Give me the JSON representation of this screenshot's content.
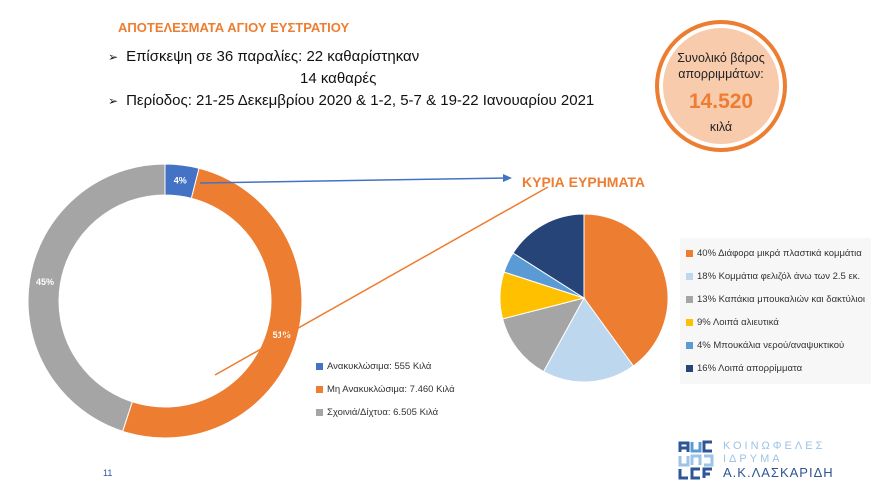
{
  "title": "ΑΠΟΤΕΛΕΣΜΑΤΑ ΑΓΙΟΥ ΕΥΣΤΡΑΤΙΟΥ",
  "bullets": {
    "visit": "Επίσκεψη σε 36 παραλίες:  22 καθαρίστηκαν",
    "visit2": "14 καθαρές",
    "period": "Περίοδος: 21-25 Δεκεμβρίου 2020 & 1-2, 5-7 & 19-22 Ιανουαρίου 2021",
    "bullet_icon": "arrow-bullet"
  },
  "total": {
    "label": "Συνολικό βάρος απορριμμάτων:",
    "value": "14.520",
    "unit": "κιλά"
  },
  "findings_title": "ΚΥΡΙΑ ΕΥΡΗΜΑΤΑ",
  "page_number": "11",
  "logo": {
    "letters": "AUC LCF",
    "line1": "ΚΟΙΝΩΦΕΛΕΣ",
    "line2": "ΙΔΡΥΜΑ",
    "line3": "Α.Κ.ΛΑΣΚΑΡΙΔΗ"
  },
  "chart_data": [
    {
      "type": "donut",
      "title": "",
      "categories": [
        "Ανακυκλώσιμα: 555 Κιλά",
        "Μη Ανακυκλώσιμα: 7.460 Κιλά",
        "Σχοινιά/Δίχτυα: 6.505 Κιλά"
      ],
      "values": [
        4,
        51,
        45
      ],
      "data_labels": [
        "4%",
        "51%",
        "45%"
      ],
      "colors": [
        "#4472c4",
        "#ed7d31",
        "#a5a5a5"
      ],
      "legend": "bottom-right"
    },
    {
      "type": "pie",
      "title": "",
      "categories": [
        "40% Διάφορα μικρά πλαστικά κομμάτια",
        "18% Κομμάτια φελιζόλ άνω των 2.5 εκ.",
        "13% Καπάκια μπουκαλιών και δακτύλιοι",
        "9% Λοιπά αλιευτικά",
        "4% Μπουκάλια νερού/αναψυκτικού",
        "16% Λοιπά απορρίμματα"
      ],
      "values": [
        40,
        18,
        13,
        9,
        4,
        16
      ],
      "colors": [
        "#ed7d31",
        "#bdd7ee",
        "#a5a5a5",
        "#ffc000",
        "#5b9bd5",
        "#264478"
      ],
      "legend": "right"
    }
  ]
}
